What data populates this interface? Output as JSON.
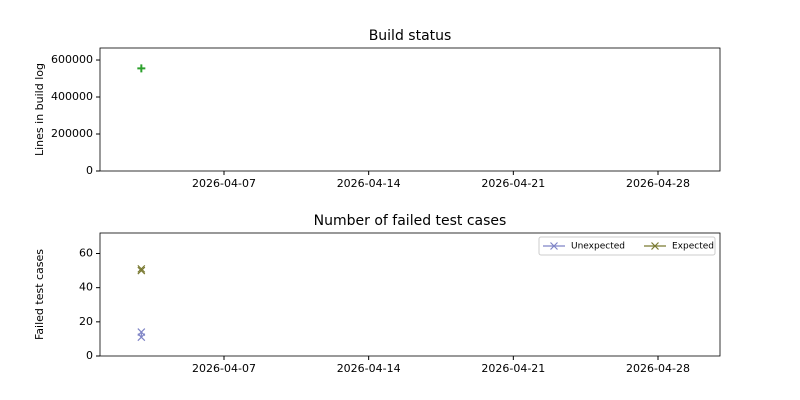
{
  "chart_data": [
    {
      "type": "scatter",
      "title": "Build status",
      "ylabel": "Lines in build log",
      "x": [
        "2026-04-03"
      ],
      "values": [
        555000
      ],
      "color": "#2ca02c",
      "marker": "+",
      "xlim": [
        "2026-04-01",
        "2026-05-01"
      ],
      "xticks": [
        "2026-04-07",
        "2026-04-14",
        "2026-04-21",
        "2026-04-28"
      ],
      "ylim": [
        0,
        665000
      ],
      "yticks": [
        0,
        200000,
        400000,
        600000
      ]
    },
    {
      "type": "line",
      "title": "Number of failed test cases",
      "ylabel": "Failed test cases",
      "x": [
        "2026-04-03",
        "2026-04-03"
      ],
      "series": [
        {
          "name": "Unexpected",
          "color": "#7f84c6",
          "marker": "x",
          "values": [
            11,
            14
          ]
        },
        {
          "name": "Expected",
          "color": "#7a7a32",
          "marker": "x",
          "values": [
            50,
            51
          ]
        }
      ],
      "legend": "upper right",
      "xlim": [
        "2026-04-01",
        "2026-05-01"
      ],
      "xticks": [
        "2026-04-07",
        "2026-04-14",
        "2026-04-21",
        "2026-04-28"
      ],
      "ylim": [
        0,
        72
      ],
      "yticks": [
        0,
        20,
        40,
        60
      ]
    }
  ]
}
